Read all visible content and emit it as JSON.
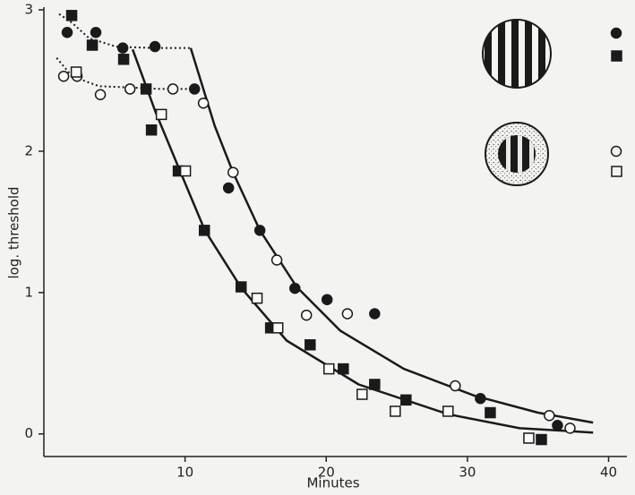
{
  "chart_data": {
    "type": "scatter",
    "xlabel": "Minutes",
    "ylabel": "log. threshold",
    "xlim": [
      0,
      41.3
    ],
    "ylim": [
      -0.16,
      3
    ],
    "xticks": [
      10,
      20,
      30,
      40
    ],
    "yticks": [
      0,
      1,
      2,
      3
    ],
    "series": [
      {
        "marker": "circle",
        "filled": true,
        "color": "#1a1a1a",
        "x": [
          1.65,
          3.68,
          5.59,
          7.87,
          10.67,
          13.08,
          15.3,
          17.78,
          20.06,
          23.43,
          30.92,
          36.38
        ],
        "values": [
          2.84,
          2.84,
          2.73,
          2.74,
          2.44,
          1.74,
          1.44,
          1.03,
          0.95,
          0.85,
          0.25,
          0.06
        ]
      },
      {
        "marker": "square",
        "filled": true,
        "color": "#1a1a1a",
        "x": [
          1.97,
          3.43,
          5.65,
          7.24,
          7.62,
          9.52,
          11.37,
          13.97,
          16.06,
          18.86,
          21.21,
          23.43,
          25.65,
          31.62,
          35.24
        ],
        "values": [
          2.96,
          2.75,
          2.65,
          2.44,
          2.15,
          1.86,
          1.44,
          1.04,
          0.75,
          0.63,
          0.46,
          0.35,
          0.24,
          0.15,
          -0.04
        ]
      },
      {
        "marker": "circle",
        "filled": false,
        "color": "#1a1a1a",
        "x": [
          1.4,
          2.35,
          4.0,
          6.1,
          9.14,
          11.3,
          13.4,
          16.5,
          18.6,
          21.5,
          29.14,
          35.8,
          37.27
        ],
        "values": [
          2.53,
          2.53,
          2.4,
          2.44,
          2.44,
          2.34,
          1.85,
          1.23,
          0.84,
          0.85,
          0.34,
          0.13,
          0.04
        ]
      },
      {
        "marker": "square",
        "filled": false,
        "color": "#1a1a1a",
        "x": [
          2.29,
          8.32,
          10.03,
          15.1,
          16.57,
          20.19,
          22.54,
          24.89,
          28.63,
          34.35
        ],
        "values": [
          2.56,
          2.26,
          1.86,
          0.96,
          0.75,
          0.46,
          0.28,
          0.16,
          0.16,
          -0.03
        ]
      }
    ],
    "curves": [
      {
        "dash": "solid",
        "color": "#1a1a1a",
        "x": [
          6.29,
          7.9,
          9.6,
          11.4,
          14,
          17.2,
          22.3,
          28.6,
          33.7,
          38.9
        ],
        "values": [
          2.72,
          2.28,
          1.87,
          1.44,
          1.03,
          0.66,
          0.35,
          0.14,
          0.04,
          0.01
        ]
      },
      {
        "dash": "solid",
        "color": "#1a1a1a",
        "x": [
          10.4,
          12.1,
          13.4,
          15.3,
          17.9,
          21,
          25.5,
          30.5,
          35,
          38.9
        ],
        "values": [
          2.73,
          2.18,
          1.85,
          1.44,
          1.04,
          0.73,
          0.46,
          0.27,
          0.15,
          0.08
        ]
      },
      {
        "dash": "dotted",
        "color": "#1a1a1a",
        "x": [
          1.08,
          1.97,
          3.2,
          5.1,
          7.7,
          10.4
        ],
        "values": [
          2.97,
          2.91,
          2.8,
          2.74,
          2.73,
          2.73
        ]
      },
      {
        "dash": "dotted",
        "color": "#1a1a1a",
        "x": [
          0.9,
          2,
          3.9,
          6.4,
          8.3,
          10.4
        ],
        "values": [
          2.66,
          2.53,
          2.46,
          2.45,
          2.44,
          2.44
        ]
      }
    ]
  }
}
